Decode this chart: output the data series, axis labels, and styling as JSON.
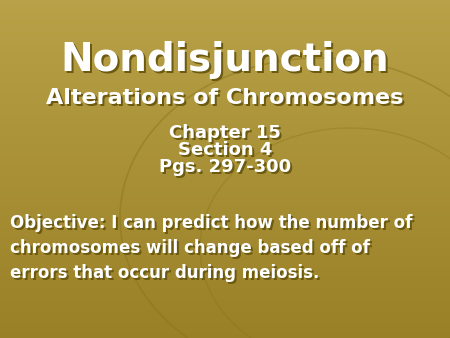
{
  "title": "Nondisjunction",
  "subtitle": "Alterations of Chromosomes",
  "line1": "Chapter 15",
  "line2": "Section 4",
  "line3": "Pgs. 297-300",
  "objective": "Objective: I can predict how the number of\nchromosomes will change based off of\nerrors that occur during meiosis.",
  "bg_color": "#A08828",
  "text_color": "#FFFFFF",
  "shadow_color": "#6B5A10",
  "title_fontsize": 28,
  "subtitle_fontsize": 16,
  "body_fontsize": 13,
  "objective_fontsize": 12
}
